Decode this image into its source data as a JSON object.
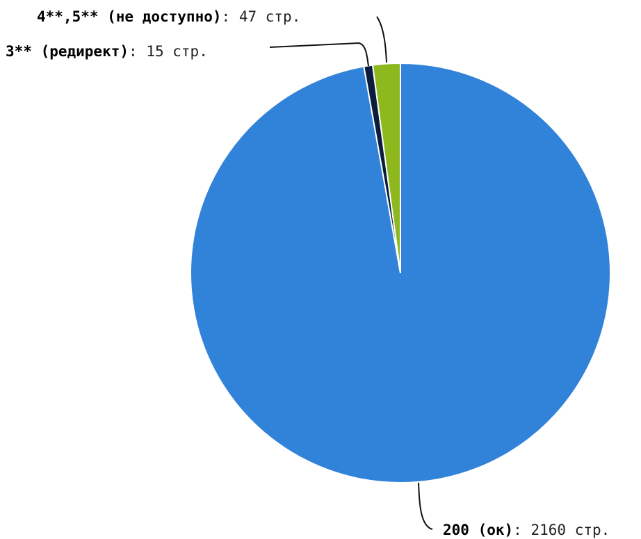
{
  "chart_data": {
    "type": "pie",
    "start_angle_deg": 0,
    "direction": "clockwise",
    "unit": "стр.",
    "slices": [
      {
        "label": "200 (ок)",
        "value": 2160,
        "color": "#3182d9"
      },
      {
        "label": "3** (редирект)",
        "value": 15,
        "color": "#0c1c3d"
      },
      {
        "label": "4**,5** (не доступно)",
        "value": 47,
        "color": "#8db81e"
      }
    ]
  }
}
